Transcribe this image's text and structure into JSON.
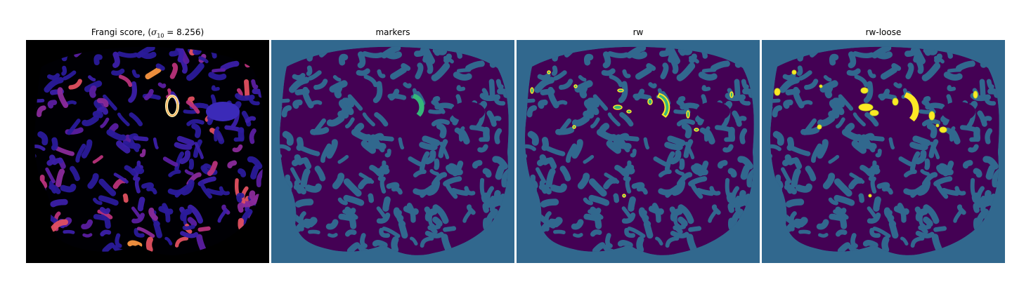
{
  "panels": [
    {
      "id": "frangi",
      "title_prefix": "Frangi score, (",
      "title_symbol": "σ",
      "title_subscript": "10",
      "title_suffix": " = 8.256)",
      "colormap": "magma"
    },
    {
      "id": "markers",
      "title": "markers",
      "colormap": "viridis"
    },
    {
      "id": "rw",
      "title": "rw",
      "colormap": "viridis"
    },
    {
      "id": "rw-loose",
      "title": "rw-loose",
      "colormap": "viridis"
    }
  ],
  "colors": {
    "background_class": "#31688e",
    "tissue_class": "#440154",
    "marker_class": "#35b779",
    "detection_class": "#fde725",
    "frangi_background": "#000000",
    "frangi_low": "#2a1a9a",
    "frangi_high": "#fcfdbf"
  }
}
